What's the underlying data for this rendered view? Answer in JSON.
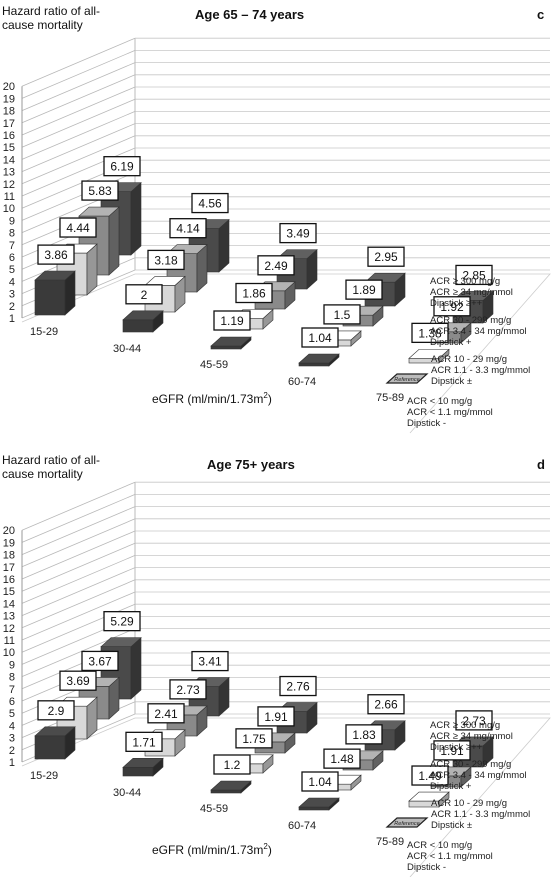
{
  "chart_data": [
    {
      "type": "bar",
      "panel_letter": "c",
      "title": "Age 65 – 74 years",
      "ylabel_lines": [
        "Hazard ratio of all-",
        "cause mortality"
      ],
      "xlabel": "eGFR (ml/min/1.73m",
      "xlabel_sup": "2",
      "xlabel_end": ")",
      "ylim": [
        1,
        20
      ],
      "yticks": [
        "1",
        "2",
        "3",
        "4",
        "5",
        "6",
        "7",
        "8",
        "9",
        "10",
        "11",
        "12",
        "13",
        "14",
        "15",
        "16",
        "17",
        "18",
        "19",
        "20"
      ],
      "categories": [
        "15-29",
        "30-44",
        "45-59",
        "60-74",
        "75-89"
      ],
      "reference_label": "Reference",
      "series": [
        {
          "name": [
            "ACR < 10 mg/g",
            "ACR < 1.1 mg/mmol",
            "Dipstick -"
          ],
          "color": "#3a3a3a",
          "values": [
            3.86,
            2,
            1.19,
            1.04,
            null
          ]
        },
        {
          "name": [
            "ACR 10 - 29 mg/g",
            "ACR 1.1 - 3.3 mg/mmol",
            "Dipstick ±"
          ],
          "color": "#d8d8d8",
          "values": [
            4.44,
            3.18,
            1.86,
            1.5,
            1.38
          ]
        },
        {
          "name": [
            "ACR 30 - 299 mg/g",
            "ACR 3.4 - 34 mg/mmol",
            "Dipstick +"
          ],
          "color": "#8a8a8a",
          "values": [
            5.83,
            4.14,
            2.49,
            1.89,
            1.92
          ]
        },
        {
          "name": [
            "ACR ≥ 300 mg/g",
            "ACR ≥ 34 mg/mmol",
            "Dipstick ≥++"
          ],
          "color": "#4a4a4a",
          "values": [
            6.19,
            4.56,
            3.49,
            2.95,
            2.85
          ]
        }
      ]
    },
    {
      "type": "bar",
      "panel_letter": "d",
      "title": "Age 75+ years",
      "ylabel_lines": [
        "Hazard ratio of all-",
        "cause mortality"
      ],
      "xlabel": "eGFR (ml/min/1.73m",
      "xlabel_sup": "2",
      "xlabel_end": ")",
      "ylim": [
        1,
        20
      ],
      "yticks": [
        "1",
        "2",
        "3",
        "4",
        "5",
        "6",
        "7",
        "8",
        "9",
        "10",
        "11",
        "12",
        "13",
        "14",
        "15",
        "16",
        "17",
        "18",
        "19",
        "20"
      ],
      "categories": [
        "15-29",
        "30-44",
        "45-59",
        "60-74",
        "75-89"
      ],
      "reference_label": "Reference",
      "series": [
        {
          "name": [
            "ACR < 10 mg/g",
            "ACR < 1.1 mg/mmol",
            "Dipstick -"
          ],
          "color": "#3a3a3a",
          "values": [
            2.9,
            1.71,
            1.2,
            1.04,
            null
          ]
        },
        {
          "name": [
            "ACR 10 - 29 mg/g",
            "ACR 1.1 - 3.3 mg/mmol",
            "Dipstick ±"
          ],
          "color": "#d8d8d8",
          "values": [
            3.69,
            2.41,
            1.75,
            1.48,
            1.49
          ]
        },
        {
          "name": [
            "ACR 30 - 299 mg/g",
            "ACR 3.4 - 34 mg/mmol",
            "Dipstick +"
          ],
          "color": "#8a8a8a",
          "values": [
            3.67,
            2.73,
            1.91,
            1.83,
            1.91
          ]
        },
        {
          "name": [
            "ACR ≥ 300 mg/g",
            "ACR ≥ 34 mg/mmol",
            "Dipstick ≥++"
          ],
          "color": "#4a4a4a",
          "values": [
            5.29,
            3.41,
            2.76,
            2.66,
            2.73
          ]
        }
      ]
    }
  ]
}
